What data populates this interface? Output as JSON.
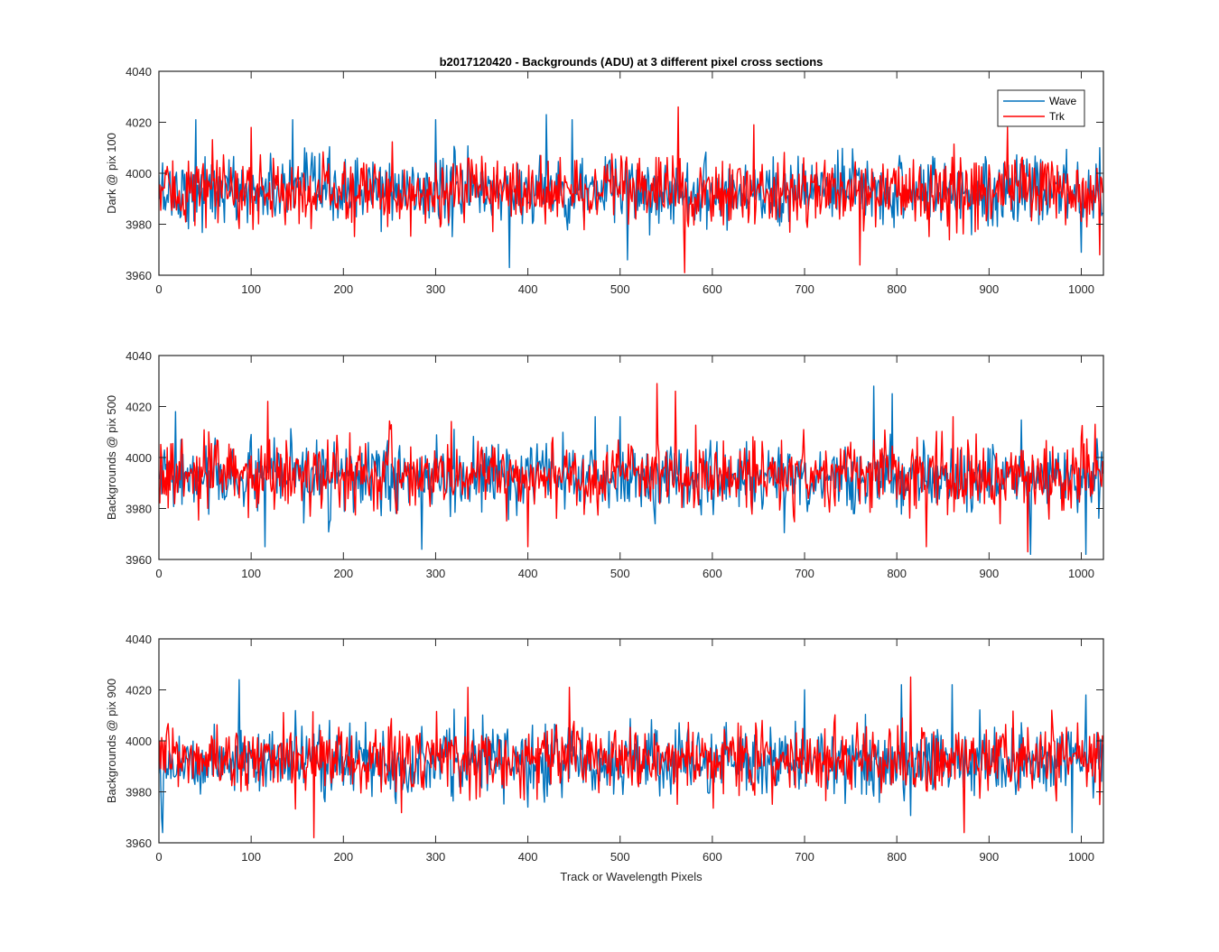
{
  "figure": {
    "background": "#ffffff",
    "axis_color": "#262626"
  },
  "chart_data": [
    {
      "type": "line",
      "title": "b2017120420 - Backgrounds (ADU) at 3 different pixel cross sections",
      "xlabel": "",
      "ylabel": "Dark @ pix 100",
      "xlim": [
        0,
        1024
      ],
      "ylim": [
        3960,
        4040
      ],
      "xticks": [
        0,
        100,
        200,
        300,
        400,
        500,
        600,
        700,
        800,
        900,
        1000
      ],
      "yticks": [
        3960,
        3980,
        4000,
        4020,
        4040
      ],
      "grid": false,
      "legend": "top-right",
      "series": [
        {
          "name": "Wave",
          "color": "#0072BD",
          "points": 1024,
          "typical": 3993,
          "spread": 6.5,
          "peaks": [
            [
              40,
              4021
            ],
            [
              145,
              4021
            ],
            [
              300,
              4021
            ],
            [
              380,
              3963
            ],
            [
              420,
              4023
            ],
            [
              448,
              4021
            ],
            [
              508,
              3966
            ],
            [
              1020,
              4010
            ],
            [
              1000,
              3969
            ]
          ]
        },
        {
          "name": "Trk",
          "color": "#FF0000",
          "points": 1024,
          "typical": 3993,
          "spread": 6.5,
          "peaks": [
            [
              100,
              4018
            ],
            [
              563,
              4026
            ],
            [
              570,
              3961
            ],
            [
              645,
              4019
            ],
            [
              760,
              3964
            ],
            [
              920,
              4018
            ],
            [
              1020,
              3968
            ]
          ]
        }
      ]
    },
    {
      "type": "line",
      "title": "",
      "xlabel": "",
      "ylabel": "Backgrounds @ pix 500",
      "xlim": [
        0,
        1024
      ],
      "ylim": [
        3960,
        4040
      ],
      "xticks": [
        0,
        100,
        200,
        300,
        400,
        500,
        600,
        700,
        800,
        900,
        1000
      ],
      "yticks": [
        3960,
        3980,
        4000,
        4020,
        4040
      ],
      "grid": false,
      "legend": "none",
      "series": [
        {
          "name": "Wave",
          "color": "#0072BD",
          "points": 1024,
          "typical": 3992,
          "spread": 6.5,
          "peaks": [
            [
              18,
              4018
            ],
            [
              115,
              3965
            ],
            [
              285,
              3964
            ],
            [
              500,
              4016
            ],
            [
              775,
              4028
            ],
            [
              795,
              4025
            ],
            [
              1005,
              3962
            ],
            [
              945,
              3962
            ]
          ]
        },
        {
          "name": "Trk",
          "color": "#FF0000",
          "points": 1024,
          "typical": 3993,
          "spread": 6.5,
          "peaks": [
            [
              118,
              4022
            ],
            [
              400,
              3965
            ],
            [
              540,
              4029
            ],
            [
              560,
              4026
            ],
            [
              832,
              3965
            ],
            [
              942,
              3963
            ]
          ]
        }
      ]
    },
    {
      "type": "line",
      "title": "",
      "xlabel": "Track or Wavelength Pixels",
      "ylabel": "Backgrounds @ pix 900",
      "xlim": [
        0,
        1024
      ],
      "ylim": [
        3960,
        4040
      ],
      "xticks": [
        0,
        100,
        200,
        300,
        400,
        500,
        600,
        700,
        800,
        900,
        1000
      ],
      "yticks": [
        3960,
        3980,
        4000,
        4020,
        4040
      ],
      "grid": false,
      "legend": "none",
      "series": [
        {
          "name": "Wave",
          "color": "#0072BD",
          "points": 1024,
          "typical": 3992,
          "spread": 6.5,
          "peaks": [
            [
              4,
              3964
            ],
            [
              87,
              4024
            ],
            [
              700,
              4020
            ],
            [
              805,
              4022
            ],
            [
              860,
              4022
            ],
            [
              990,
              3964
            ],
            [
              1005,
              4018
            ]
          ]
        },
        {
          "name": "Trk",
          "color": "#FF0000",
          "points": 1024,
          "typical": 3993,
          "spread": 6.5,
          "peaks": [
            [
              168,
              3962
            ],
            [
              335,
              4021
            ],
            [
              445,
              4021
            ],
            [
              815,
              4025
            ],
            [
              873,
              3964
            ],
            [
              1020,
              3975
            ]
          ]
        }
      ]
    }
  ]
}
